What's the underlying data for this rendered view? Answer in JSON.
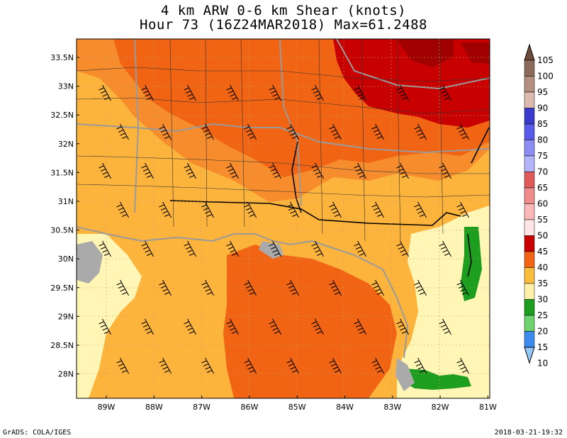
{
  "title": {
    "line1": "4 km ARW 0-6 km Shear (knots)",
    "line2": "Hour 73 (16Z24MAR2018) Max=61.2488"
  },
  "footer": {
    "left": "GrADS: COLA/IGES",
    "right": "2018-03-21-19:32"
  },
  "lat_labels": [
    "33.5N",
    "33N",
    "32.5N",
    "32N",
    "31.5N",
    "31N",
    "30.5N",
    "30N",
    "29.5N",
    "29N",
    "28.5N",
    "28N"
  ],
  "lon_labels": [
    "89W",
    "88W",
    "87W",
    "86W",
    "85W",
    "84W",
    "83W",
    "82W",
    "81W"
  ],
  "colorbar": {
    "levels": [
      "105",
      "100",
      "95",
      "90",
      "85",
      "80",
      "75",
      "70",
      "65",
      "60",
      "55",
      "50",
      "45",
      "40",
      "35",
      "30",
      "25",
      "20",
      "15",
      "10"
    ],
    "colors": [
      "#6e4a3a",
      "#8b6a5a",
      "#b48e80",
      "#dcbab0",
      "#3a3acc",
      "#5a5ae8",
      "#8c8cf4",
      "#b4b4fa",
      "#e05a5a",
      "#f08c8c",
      "#fab8b8",
      "#ffe6e6",
      "#c80000",
      "#f06414",
      "#fabc3c",
      "#fff0aa",
      "#1e9e1e",
      "#6ed26e",
      "#3c8cf0",
      "#96c8fa"
    ]
  },
  "palette": {
    "light_yellow": "#fff5b4",
    "orange_40": "#fcb43c",
    "orange_45": "#f68c2c",
    "orange_50": "#f06414",
    "red_55": "#c80000",
    "green_30": "#1e9e1e",
    "land_gray": "#aaaaaa"
  }
}
